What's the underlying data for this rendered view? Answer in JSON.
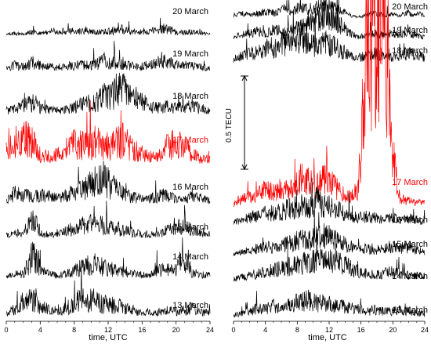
{
  "chart_data": [
    {
      "type": "line",
      "panel": "left",
      "xlabel": "time, UTC",
      "xlim": [
        0,
        24
      ],
      "xticks": [
        "0",
        "4",
        "8",
        "12",
        "16",
        "20",
        "24"
      ],
      "highlight_color": "#ff0000",
      "base_color": "#000000",
      "series": [
        {
          "name": "20 March",
          "highlight": false,
          "values": [
            0.02,
            0.03,
            0.02,
            0.05,
            0.03,
            0.06,
            0.04,
            0.07,
            0.05,
            0.06,
            0.04,
            0.05,
            0.06,
            0.08,
            0.05,
            0.04,
            0.07,
            0.06,
            0.09,
            0.05,
            0.04,
            0.05,
            0.03,
            0.02
          ]
        },
        {
          "name": "19 March",
          "highlight": false,
          "values": [
            0.05,
            0.08,
            0.06,
            0.12,
            0.07,
            0.06,
            0.05,
            0.07,
            0.08,
            0.09,
            0.1,
            0.12,
            0.11,
            0.09,
            0.07,
            0.06,
            0.08,
            0.1,
            0.12,
            0.09,
            0.08,
            0.07,
            0.06,
            0.04
          ]
        },
        {
          "name": "18 March",
          "highlight": false,
          "values": [
            0.06,
            0.08,
            0.12,
            0.16,
            0.08,
            0.07,
            0.06,
            0.08,
            0.12,
            0.14,
            0.16,
            0.22,
            0.28,
            0.3,
            0.24,
            0.18,
            0.12,
            0.1,
            0.11,
            0.09,
            0.1,
            0.12,
            0.09,
            0.05
          ]
        },
        {
          "name": "17 March",
          "highlight": true,
          "values": [
            0.22,
            0.28,
            0.32,
            0.26,
            0.12,
            0.1,
            0.14,
            0.22,
            0.26,
            0.24,
            0.28,
            0.22,
            0.26,
            0.3,
            0.22,
            0.15,
            0.12,
            0.1,
            0.2,
            0.26,
            0.22,
            0.14,
            0.1,
            0.08
          ]
        },
        {
          "name": "16 March",
          "highlight": false,
          "values": [
            0.05,
            0.14,
            0.12,
            0.1,
            0.13,
            0.1,
            0.08,
            0.12,
            0.16,
            0.2,
            0.26,
            0.3,
            0.22,
            0.14,
            0.1,
            0.08,
            0.07,
            0.1,
            0.12,
            0.08,
            0.06,
            0.1,
            0.08,
            0.05
          ]
        },
        {
          "name": "15 March",
          "highlight": false,
          "values": [
            0.04,
            0.06,
            0.08,
            0.22,
            0.06,
            0.05,
            0.06,
            0.1,
            0.14,
            0.16,
            0.18,
            0.16,
            0.12,
            0.1,
            0.08,
            0.06,
            0.04,
            0.05,
            0.1,
            0.12,
            0.14,
            0.1,
            0.06,
            0.04
          ]
        },
        {
          "name": "14 March",
          "highlight": false,
          "values": [
            0.04,
            0.06,
            0.08,
            0.28,
            0.1,
            0.06,
            0.05,
            0.08,
            0.12,
            0.16,
            0.18,
            0.14,
            0.12,
            0.1,
            0.08,
            0.06,
            0.05,
            0.1,
            0.12,
            0.1,
            0.26,
            0.08,
            0.06,
            0.05
          ]
        },
        {
          "name": "13 March",
          "highlight": false,
          "values": [
            0.05,
            0.1,
            0.18,
            0.22,
            0.12,
            0.08,
            0.06,
            0.12,
            0.18,
            0.22,
            0.2,
            0.16,
            0.14,
            0.12,
            0.1,
            0.06,
            0.05,
            0.06,
            0.08,
            0.07,
            0.08,
            0.1,
            0.07,
            0.05
          ]
        }
      ]
    },
    {
      "type": "line",
      "panel": "right",
      "xlabel": "time, UTC",
      "xlim": [
        0,
        24
      ],
      "xticks": [
        "0",
        "4",
        "8",
        "12",
        "16",
        "20",
        "24"
      ],
      "scale_bar_label": "0.5 TECU",
      "scale_bar_value": 0.5,
      "highlight_color": "#ff0000",
      "base_color": "#000000",
      "series": [
        {
          "name": "20 March",
          "highlight": false,
          "values": [
            0.02,
            0.03,
            0.02,
            0.03,
            0.04,
            0.03,
            0.05,
            0.04,
            0.06,
            0.05,
            0.07,
            0.08,
            0.06,
            0.04,
            0.02,
            0.01,
            0.02,
            0.03,
            0.02,
            0.03,
            0.02,
            0.03,
            0.02,
            0.02
          ]
        },
        {
          "name": "19 March",
          "highlight": false,
          "values": [
            0.02,
            0.03,
            0.04,
            0.05,
            0.04,
            0.06,
            0.05,
            0.06,
            0.07,
            0.1,
            0.12,
            0.14,
            0.12,
            0.08,
            0.04,
            0.02,
            0.03,
            0.04,
            0.03,
            0.04,
            0.03,
            0.04,
            0.03,
            0.02
          ]
        },
        {
          "name": "18 March",
          "highlight": false,
          "values": [
            0.03,
            0.05,
            0.06,
            0.07,
            0.1,
            0.08,
            0.12,
            0.1,
            0.14,
            0.12,
            0.1,
            0.12,
            0.1,
            0.08,
            0.05,
            0.04,
            0.05,
            0.06,
            0.05,
            0.04,
            0.05,
            0.06,
            0.05,
            0.04
          ]
        },
        {
          "name": "17 March",
          "highlight": true,
          "values": [
            0.02,
            0.05,
            0.06,
            0.08,
            0.1,
            0.08,
            0.12,
            0.1,
            0.16,
            0.14,
            0.12,
            0.16,
            0.12,
            0.08,
            0.06,
            0.1,
            0.9,
            1.05,
            1.1,
            0.35,
            0.05,
            0.04,
            0.03,
            0.03
          ]
        },
        {
          "name": "16 March",
          "highlight": false,
          "values": [
            0.03,
            0.04,
            0.05,
            0.06,
            0.08,
            0.07,
            0.09,
            0.1,
            0.12,
            0.1,
            0.14,
            0.12,
            0.1,
            0.08,
            0.06,
            0.05,
            0.06,
            0.05,
            0.04,
            0.05,
            0.04,
            0.05,
            0.04,
            0.03
          ]
        },
        {
          "name": "15 March",
          "highlight": false,
          "values": [
            0.02,
            0.03,
            0.04,
            0.05,
            0.06,
            0.05,
            0.07,
            0.08,
            0.1,
            0.09,
            0.11,
            0.12,
            0.1,
            0.08,
            0.06,
            0.04,
            0.05,
            0.04,
            0.05,
            0.06,
            0.05,
            0.06,
            0.04,
            0.03
          ]
        },
        {
          "name": "14 March",
          "highlight": false,
          "values": [
            0.02,
            0.03,
            0.04,
            0.05,
            0.06,
            0.07,
            0.08,
            0.09,
            0.1,
            0.11,
            0.12,
            0.13,
            0.12,
            0.1,
            0.08,
            0.06,
            0.05,
            0.04,
            0.05,
            0.06,
            0.05,
            0.04,
            0.04,
            0.03
          ]
        },
        {
          "name": "13 March",
          "highlight": false,
          "values": [
            0.02,
            0.03,
            0.04,
            0.06,
            0.05,
            0.07,
            0.06,
            0.08,
            0.09,
            0.1,
            0.08,
            0.09,
            0.08,
            0.07,
            0.06,
            0.05,
            0.04,
            0.05,
            0.04,
            0.04,
            0.05,
            0.04,
            0.03,
            0.03
          ]
        }
      ]
    }
  ]
}
